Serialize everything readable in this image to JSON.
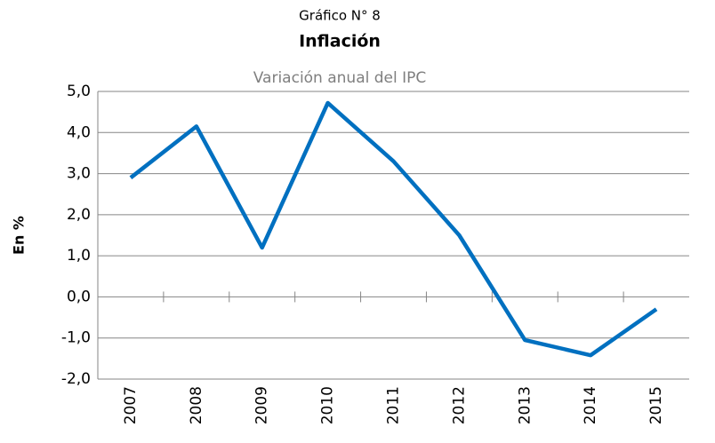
{
  "chart_data": {
    "type": "line",
    "title": "Gráfico N° 8",
    "subtitle": "Inflación",
    "caption": "Variación anual del IPC",
    "y_label": "En %",
    "categories": [
      "2007",
      "2008",
      "2009",
      "2010",
      "2011",
      "2012",
      "2013",
      "2014",
      "2015"
    ],
    "series": [
      {
        "name": "Inflación",
        "color": "#0070c0",
        "values": [
          2.9,
          4.15,
          1.2,
          4.72,
          3.3,
          1.5,
          -1.05,
          -1.42,
          -0.3
        ]
      }
    ],
    "ylim": [
      -2,
      5
    ],
    "yticks": [
      {
        "value": -2,
        "label": "-2,0"
      },
      {
        "value": -1,
        "label": "-1,0"
      },
      {
        "value": 0,
        "label": "0,0"
      },
      {
        "value": 1,
        "label": "1,0"
      },
      {
        "value": 2,
        "label": "2,0"
      },
      {
        "value": 3,
        "label": "3,0"
      },
      {
        "value": 4,
        "label": "4,0"
      },
      {
        "value": 5,
        "label": "5,0"
      }
    ],
    "grid": true
  }
}
